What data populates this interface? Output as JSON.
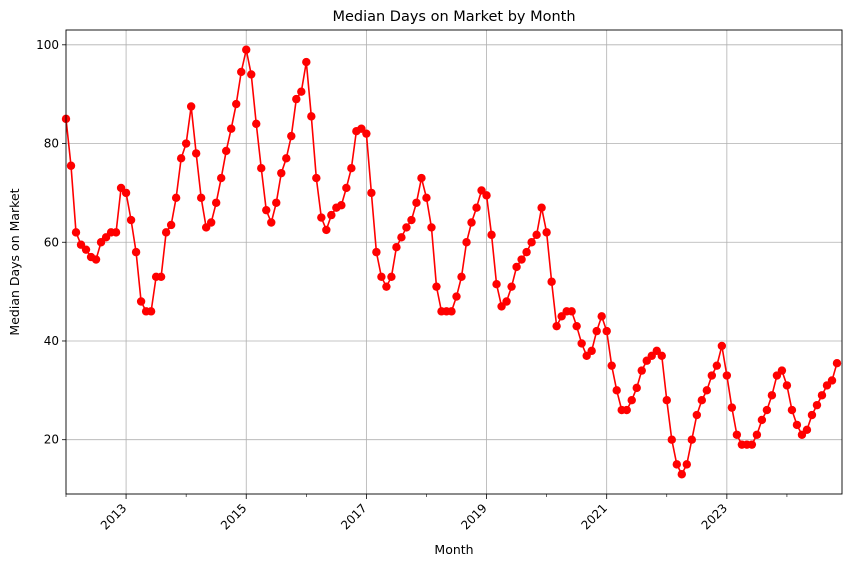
{
  "chart_data": {
    "type": "line",
    "title": "Median Days on Market by Month",
    "xlabel": "Month",
    "ylabel": "Median Days on Market",
    "x_start": "2012-01",
    "x_end": "2024-12",
    "xlim": [
      "2012-01",
      "2024-12"
    ],
    "ylim": [
      9,
      103
    ],
    "grid": true,
    "legend": "none",
    "y_ticks": [
      20,
      40,
      60,
      80,
      100
    ],
    "x_ticks": [
      "2013",
      "2015",
      "2017",
      "2019",
      "2021",
      "2023"
    ],
    "series": [
      {
        "color": "#ff0000",
        "marker": "circle",
        "values": [
          85,
          75.5,
          62,
          59.5,
          58.5,
          57,
          56.5,
          60,
          61,
          62,
          62,
          71,
          70,
          64.5,
          58,
          48,
          46,
          46,
          53,
          53,
          62,
          63.5,
          69,
          77,
          80,
          87.5,
          78,
          69,
          63,
          64,
          68,
          73,
          78.5,
          83,
          88,
          94.5,
          99,
          94,
          84,
          75,
          66.5,
          64,
          68,
          74,
          77,
          81.5,
          89,
          90.5,
          96.5,
          85.5,
          73,
          65,
          62.5,
          65.5,
          67,
          67.5,
          71,
          75,
          82.5,
          83,
          82,
          70,
          58,
          53,
          51,
          53,
          59,
          61,
          63,
          64.5,
          68,
          73,
          69,
          63,
          51,
          46,
          46,
          46,
          49,
          53,
          60,
          64,
          67,
          70.5,
          69.5,
          61.5,
          51.5,
          47,
          48,
          51,
          55,
          56.5,
          58,
          60,
          61.5,
          67,
          62,
          52,
          43,
          45,
          46,
          46,
          43,
          39.5,
          37,
          38,
          42,
          45,
          42,
          35,
          30,
          26,
          26,
          28,
          30.5,
          34,
          36,
          37,
          38,
          37,
          28,
          20,
          15,
          13,
          15,
          20,
          25,
          28,
          30,
          33,
          35,
          39,
          33,
          26.5,
          21,
          19,
          19,
          19,
          21,
          24,
          26,
          29,
          33,
          34,
          31,
          26,
          23,
          21,
          22,
          25,
          27,
          29,
          31,
          32,
          35.5
        ]
      }
    ]
  }
}
